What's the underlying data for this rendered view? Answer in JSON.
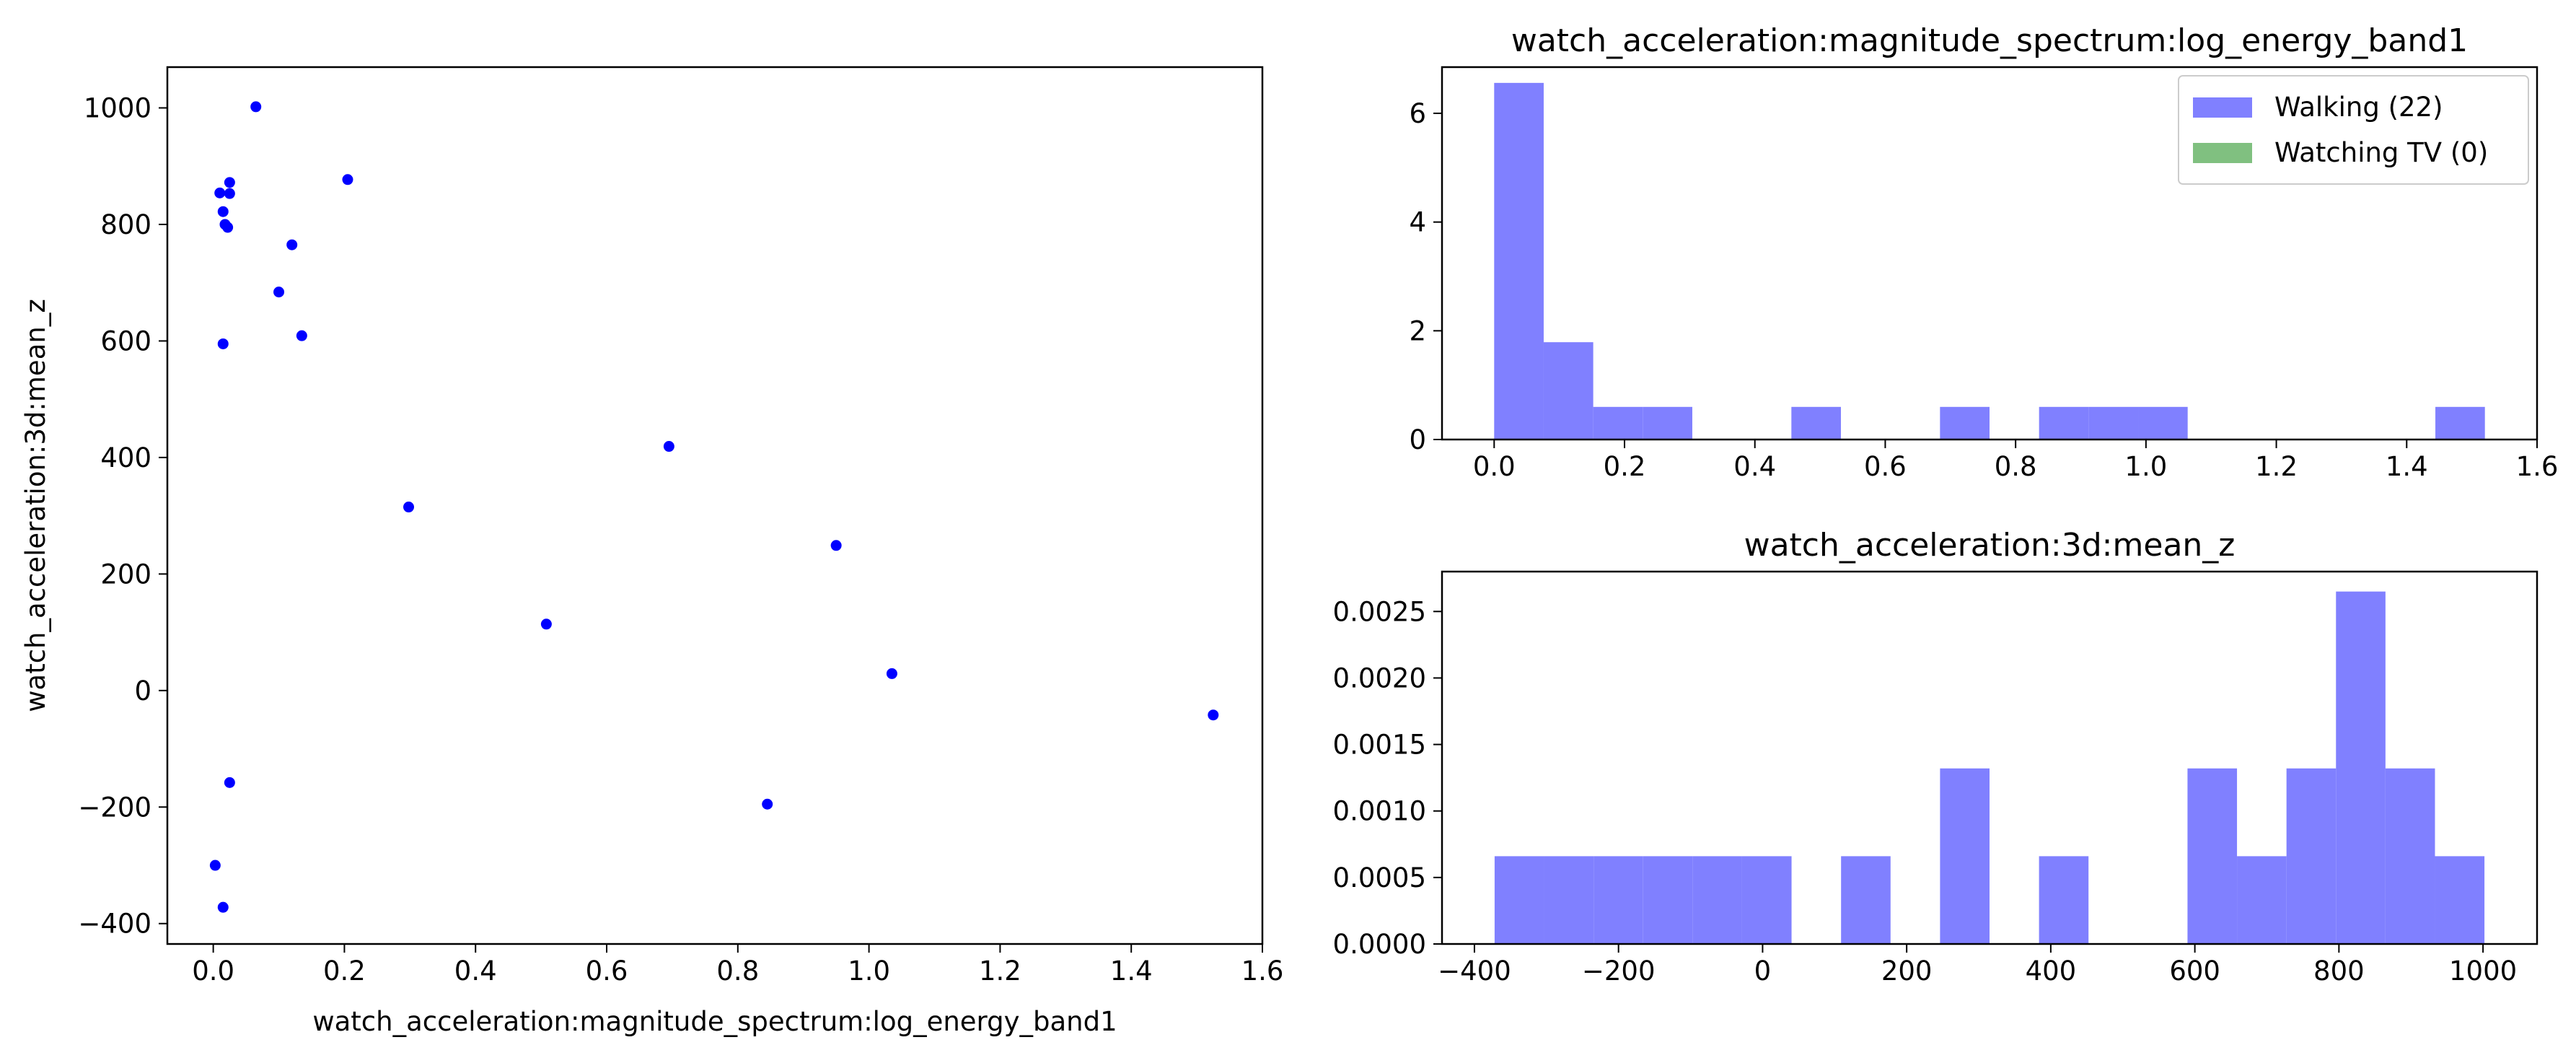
{
  "chart_data": [
    {
      "type": "scatter",
      "title": "",
      "xlabel": "watch_acceleration:magnitude_spectrum:log_energy_band1",
      "ylabel": "watch_acceleration:3d:mean_z",
      "xlim": [
        -0.07,
        1.6
      ],
      "ylim": [
        -435,
        1070
      ],
      "xticks": [
        "0.0",
        "0.2",
        "0.4",
        "0.6",
        "0.8",
        "1.0",
        "1.2",
        "1.4",
        "1.6"
      ],
      "yticks": [
        "−400",
        "−200",
        "0",
        "200",
        "400",
        "600",
        "800",
        "1000"
      ],
      "color": "#0000ff",
      "points": [
        {
          "x": 0.065,
          "y": 1002
        },
        {
          "x": 0.205,
          "y": 877
        },
        {
          "x": 0.025,
          "y": 872
        },
        {
          "x": 0.01,
          "y": 854
        },
        {
          "x": 0.025,
          "y": 853
        },
        {
          "x": 0.015,
          "y": 822
        },
        {
          "x": 0.018,
          "y": 800
        },
        {
          "x": 0.022,
          "y": 795
        },
        {
          "x": 0.12,
          "y": 765
        },
        {
          "x": 0.1,
          "y": 684
        },
        {
          "x": 0.135,
          "y": 609
        },
        {
          "x": 0.015,
          "y": 595
        },
        {
          "x": 0.695,
          "y": 419
        },
        {
          "x": 0.298,
          "y": 315
        },
        {
          "x": 0.95,
          "y": 249
        },
        {
          "x": 0.508,
          "y": 114
        },
        {
          "x": 1.035,
          "y": 29
        },
        {
          "x": 1.525,
          "y": -42
        },
        {
          "x": 0.025,
          "y": -158
        },
        {
          "x": 0.845,
          "y": -195
        },
        {
          "x": 0.003,
          "y": -300
        },
        {
          "x": 0.015,
          "y": -372
        }
      ]
    },
    {
      "type": "bar",
      "title": "watch_acceleration:magnitude_spectrum:log_energy_band1",
      "xlabel": "",
      "ylabel": "",
      "xlim": [
        -0.08,
        1.6
      ],
      "ylim": [
        0,
        6.85
      ],
      "xticks": [
        "0.0",
        "0.2",
        "0.4",
        "0.6",
        "0.8",
        "1.0",
        "1.2",
        "1.4",
        "1.6"
      ],
      "yticks": [
        "0",
        "2",
        "4",
        "6"
      ],
      "legend_position": "top-right",
      "series": [
        {
          "name": "Walking (22)",
          "color": "#8080ff",
          "bin_edges": [
            0.0,
            0.076,
            0.152,
            0.228,
            0.304,
            0.38,
            0.456,
            0.532,
            0.608,
            0.684,
            0.76,
            0.836,
            0.912,
            0.988,
            1.064,
            1.14,
            1.216,
            1.292,
            1.368,
            1.444,
            1.52
          ],
          "values": [
            6.56,
            1.79,
            0.6,
            0.6,
            0,
            0,
            0.6,
            0,
            0,
            0.6,
            0,
            0.6,
            0.6,
            0.6,
            0,
            0,
            0,
            0,
            0,
            0.6
          ]
        },
        {
          "name": "Watching TV (0)",
          "color": "#80c080",
          "bin_edges": [],
          "values": []
        }
      ]
    },
    {
      "type": "bar",
      "title": "watch_acceleration:3d:mean_z",
      "xlabel": "",
      "ylabel": "",
      "xlim": [
        -445,
        1075
      ],
      "ylim": [
        0,
        0.0028
      ],
      "xticks": [
        "−400",
        "−200",
        "0",
        "200",
        "400",
        "600",
        "800",
        "1000"
      ],
      "yticks": [
        "0.0000",
        "0.0005",
        "0.0010",
        "0.0015",
        "0.0020",
        "0.0025"
      ],
      "series": [
        {
          "name": "",
          "color": "#8080ff",
          "bin_edges": [
            -372,
            -303.3,
            -234.6,
            -165.9,
            -97.2,
            -28.5,
            40.2,
            108.9,
            177.6,
            246.3,
            315.0,
            383.7,
            452.4,
            521.1,
            589.8,
            658.5,
            727.2,
            795.9,
            864.6,
            933.3,
            1002
          ],
          "values": [
            0.00066,
            0.00066,
            0.00066,
            0.00066,
            0.00066,
            0.00066,
            0,
            0.00066,
            0,
            0.00132,
            0,
            0.00066,
            0,
            0,
            0.00132,
            0.00066,
            0.00132,
            0.00265,
            0.00132,
            0.00066
          ]
        }
      ]
    }
  ]
}
